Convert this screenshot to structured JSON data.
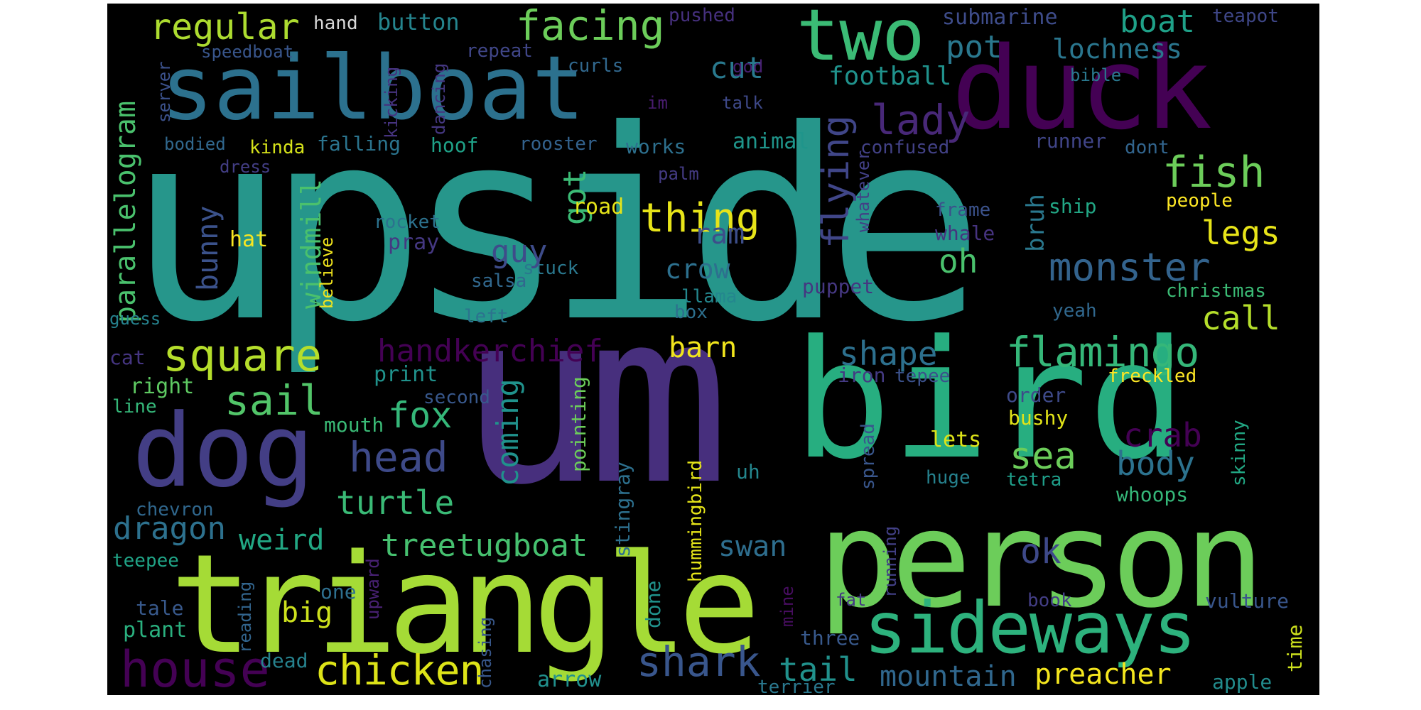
{
  "words": [
    {
      "text": "upside",
      "color": "#26968b"
    },
    {
      "text": "um",
      "color": "#472f7d"
    },
    {
      "text": "bird",
      "color": "#27ae80"
    },
    {
      "text": "triangle",
      "color": "#a5db36"
    },
    {
      "text": "person",
      "color": "#6ccd5a"
    },
    {
      "text": "sailboat",
      "color": "#2c718e"
    },
    {
      "text": "duck",
      "color": "#440154"
    },
    {
      "text": "two",
      "color": "#3bbb75"
    },
    {
      "text": "sideways",
      "color": "#2db27d"
    },
    {
      "text": "dog",
      "color": "#433e85"
    },
    {
      "text": "house",
      "color": "#440154"
    },
    {
      "text": "chicken",
      "color": "#dde318"
    },
    {
      "text": "shark",
      "color": "#39568c"
    },
    {
      "text": "head",
      "color": "#3e4a89"
    },
    {
      "text": "square",
      "color": "#b5de2b"
    },
    {
      "text": "sail",
      "color": "#52c569"
    },
    {
      "text": "flamingo",
      "color": "#35b779"
    },
    {
      "text": "shape",
      "color": "#2d708e"
    },
    {
      "text": "fish",
      "color": "#6ccd5a"
    },
    {
      "text": "lady",
      "color": "#482878"
    },
    {
      "text": "facing",
      "color": "#6ccd5a"
    },
    {
      "text": "regular",
      "color": "#addc30"
    },
    {
      "text": "boat",
      "color": "#1fa188"
    },
    {
      "text": "button",
      "color": "#25858e"
    },
    {
      "text": "hand",
      "color": "#d8d8d8"
    },
    {
      "text": "submarine",
      "color": "#3e4c8a"
    },
    {
      "text": "teapot",
      "color": "#3f4788"
    },
    {
      "text": "pushed",
      "color": "#46307e"
    },
    {
      "text": "speedboat",
      "color": "#39568c"
    },
    {
      "text": "repeat",
      "color": "#404688"
    },
    {
      "text": "curls",
      "color": "#31688e"
    },
    {
      "text": "cut",
      "color": "#29798e"
    },
    {
      "text": "pot",
      "color": "#2a788e"
    },
    {
      "text": "lochness",
      "color": "#2a768e"
    },
    {
      "text": "football",
      "color": "#20928c"
    },
    {
      "text": "god",
      "color": "#482071"
    },
    {
      "text": "bible",
      "color": "#2a788e"
    },
    {
      "text": "server",
      "color": "#3b518b"
    },
    {
      "text": "kicking",
      "color": "#46337f"
    },
    {
      "text": "dancing",
      "color": "#453781"
    },
    {
      "text": "im",
      "color": "#481c6e"
    },
    {
      "text": "talk",
      "color": "#3e4989"
    },
    {
      "text": "bodied",
      "color": "#31688e"
    },
    {
      "text": "kinda",
      "color": "#d5e21a"
    },
    {
      "text": "falling",
      "color": "#2b748e"
    },
    {
      "text": "hoof",
      "color": "#1fa187"
    },
    {
      "text": "rooster",
      "color": "#33628d"
    },
    {
      "text": "works",
      "color": "#2d708e"
    },
    {
      "text": "animal",
      "color": "#1f958b"
    },
    {
      "text": "confused",
      "color": "#424186"
    },
    {
      "text": "runner",
      "color": "#404588"
    },
    {
      "text": "dont",
      "color": "#32658e"
    },
    {
      "text": "dress",
      "color": "#433e85"
    },
    {
      "text": "palm",
      "color": "#443b84"
    },
    {
      "text": "frame",
      "color": "#3b528b"
    },
    {
      "text": "ship",
      "color": "#22a785"
    },
    {
      "text": "people",
      "color": "#fde725"
    },
    {
      "text": "whatever",
      "color": "#424086"
    },
    {
      "text": "got",
      "color": "#3bbb75"
    },
    {
      "text": "thing",
      "color": "#e7e419"
    },
    {
      "text": "flying",
      "color": "#404688"
    },
    {
      "text": "parallelogram",
      "color": "#4ac16d"
    },
    {
      "text": "bunny",
      "color": "#3b528b"
    },
    {
      "text": "windmill",
      "color": "#4ac16d"
    },
    {
      "text": "rocket",
      "color": "#2c728e"
    },
    {
      "text": "road",
      "color": "#e5e419"
    },
    {
      "text": "hat",
      "color": "#f8e621"
    },
    {
      "text": "believe",
      "color": "#f1e51d"
    },
    {
      "text": "pray",
      "color": "#453882"
    },
    {
      "text": "salsa",
      "color": "#31688e"
    },
    {
      "text": "stuck",
      "color": "#2a788e"
    },
    {
      "text": "guy",
      "color": "#3e4c8a"
    },
    {
      "text": "ram",
      "color": "#3d4e8a"
    },
    {
      "text": "crow",
      "color": "#2d708e"
    },
    {
      "text": "llama",
      "color": "#24878e"
    },
    {
      "text": "box",
      "color": "#2d708e"
    },
    {
      "text": "puppet",
      "color": "#453781"
    },
    {
      "text": "whale",
      "color": "#46337f"
    },
    {
      "text": "bruh",
      "color": "#2a788e"
    },
    {
      "text": "oh",
      "color": "#4ac16d"
    },
    {
      "text": "monster",
      "color": "#33638d"
    },
    {
      "text": "legs",
      "color": "#e7e419"
    },
    {
      "text": "call",
      "color": "#b5de2b"
    },
    {
      "text": "christmas",
      "color": "#3bbb75"
    },
    {
      "text": "yeah",
      "color": "#31688e"
    },
    {
      "text": "left",
      "color": "#2c738e"
    },
    {
      "text": "guess",
      "color": "#26828e"
    },
    {
      "text": "cat",
      "color": "#453581"
    },
    {
      "text": "handkerchief",
      "color": "#440154"
    },
    {
      "text": "barn",
      "color": "#f1e51d"
    },
    {
      "text": "print",
      "color": "#20928c"
    },
    {
      "text": "pointing",
      "color": "#6ccd5a"
    },
    {
      "text": "second",
      "color": "#38588c"
    },
    {
      "text": "iron",
      "color": "#443a83"
    },
    {
      "text": "tepee",
      "color": "#3b518b"
    },
    {
      "text": "freckled",
      "color": "#fde725"
    },
    {
      "text": "order",
      "color": "#3e4a89"
    },
    {
      "text": "bushy",
      "color": "#e2e418"
    },
    {
      "text": "right",
      "color": "#5ec962"
    },
    {
      "text": "line",
      "color": "#35b779"
    },
    {
      "text": "mouth",
      "color": "#3aba76"
    },
    {
      "text": "fox",
      "color": "#35b779"
    },
    {
      "text": "coming",
      "color": "#20928c"
    },
    {
      "text": "crab",
      "color": "#440154"
    },
    {
      "text": "sea",
      "color": "#6ccd5a"
    },
    {
      "text": "body",
      "color": "#2c728e"
    },
    {
      "text": "lets",
      "color": "#dde318"
    },
    {
      "text": "skinny",
      "color": "#22a884"
    },
    {
      "text": "spread",
      "color": "#39568c"
    },
    {
      "text": "tetra",
      "color": "#1f9e89"
    },
    {
      "text": "whoops",
      "color": "#35b779"
    },
    {
      "text": "huge",
      "color": "#26828e"
    },
    {
      "text": "uh",
      "color": "#24878e"
    },
    {
      "text": "hummingbird",
      "color": "#e5e419"
    },
    {
      "text": "stingray",
      "color": "#2d708e"
    },
    {
      "text": "turtle",
      "color": "#3aba76"
    },
    {
      "text": "chevron",
      "color": "#30678d"
    },
    {
      "text": "dragon",
      "color": "#2d718e"
    },
    {
      "text": "weird",
      "color": "#22a884"
    },
    {
      "text": "treetugboat",
      "color": "#46c06f"
    },
    {
      "text": "swan",
      "color": "#2e6e8e"
    },
    {
      "text": "ok",
      "color": "#3e4989"
    },
    {
      "text": "teepee",
      "color": "#20a386"
    },
    {
      "text": "big",
      "color": "#cde11d"
    },
    {
      "text": "tale",
      "color": "#38598c"
    },
    {
      "text": "plant",
      "color": "#2ab07f"
    },
    {
      "text": "reading",
      "color": "#32658e"
    },
    {
      "text": "one",
      "color": "#2e6f8e"
    },
    {
      "text": "upward",
      "color": "#482173"
    },
    {
      "text": "chasing",
      "color": "#38588c"
    },
    {
      "text": "done",
      "color": "#20928c"
    },
    {
      "text": "mine",
      "color": "#470d60"
    },
    {
      "text": "running",
      "color": "#424086"
    },
    {
      "text": "three",
      "color": "#38598c"
    },
    {
      "text": "fat",
      "color": "#443983"
    },
    {
      "text": "book",
      "color": "#433e85"
    },
    {
      "text": "vulture",
      "color": "#39568c"
    },
    {
      "text": "time",
      "color": "#cde11d"
    },
    {
      "text": "tail",
      "color": "#21918c"
    },
    {
      "text": "mountain",
      "color": "#30678d"
    },
    {
      "text": "preacher",
      "color": "#f4e61e"
    },
    {
      "text": "dead",
      "color": "#26828e"
    },
    {
      "text": "arrow",
      "color": "#21908d"
    },
    {
      "text": "terrier",
      "color": "#2a788e"
    },
    {
      "text": "apple",
      "color": "#228c8d"
    }
  ]
}
